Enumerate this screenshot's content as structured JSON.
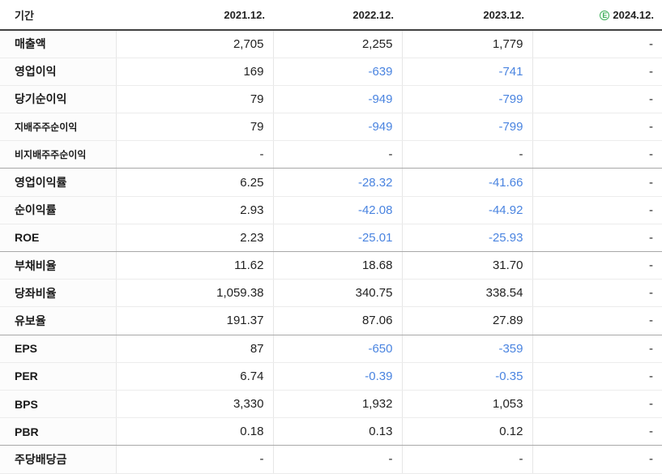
{
  "table": {
    "header": {
      "period_label": "기간",
      "years": [
        "2021.12.",
        "2022.12.",
        "2023.12.",
        "2024.12."
      ],
      "estimate_icon_letter": "E",
      "estimate_year_index": 3
    },
    "rows": [
      {
        "label": "매출액",
        "values": [
          "2,705",
          "2,255",
          "1,779",
          "-"
        ]
      },
      {
        "label": "영업이익",
        "values": [
          "169",
          "-639",
          "-741",
          "-"
        ]
      },
      {
        "label": "당기순이익",
        "values": [
          "79",
          "-949",
          "-799",
          "-"
        ]
      },
      {
        "label": "지배주주순이익",
        "values": [
          "79",
          "-949",
          "-799",
          "-"
        ],
        "small_label": true
      },
      {
        "label": "비지배주주순이익",
        "values": [
          "-",
          "-",
          "-",
          "-"
        ],
        "small_label": true,
        "group_end": true
      },
      {
        "label": "영업이익률",
        "values": [
          "6.25",
          "-28.32",
          "-41.66",
          "-"
        ]
      },
      {
        "label": "순이익률",
        "values": [
          "2.93",
          "-42.08",
          "-44.92",
          "-"
        ]
      },
      {
        "label": "ROE",
        "values": [
          "2.23",
          "-25.01",
          "-25.93",
          "-"
        ],
        "group_end": true
      },
      {
        "label": "부채비율",
        "values": [
          "11.62",
          "18.68",
          "31.70",
          "-"
        ]
      },
      {
        "label": "당좌비율",
        "values": [
          "1,059.38",
          "340.75",
          "338.54",
          "-"
        ]
      },
      {
        "label": "유보율",
        "values": [
          "191.37",
          "87.06",
          "27.89",
          "-"
        ],
        "group_end": true
      },
      {
        "label": "EPS",
        "values": [
          "87",
          "-650",
          "-359",
          "-"
        ]
      },
      {
        "label": "PER",
        "values": [
          "6.74",
          "-0.39",
          "-0.35",
          "-"
        ]
      },
      {
        "label": "BPS",
        "values": [
          "3,330",
          "1,932",
          "1,053",
          "-"
        ]
      },
      {
        "label": "PBR",
        "values": [
          "0.18",
          "0.13",
          "0.12",
          "-"
        ],
        "group_end": true
      },
      {
        "label": "주당배당금",
        "values": [
          "-",
          "-",
          "-",
          "-"
        ]
      }
    ]
  },
  "colors": {
    "negative_value": "#4a84e0",
    "estimate_green": "#3fae5a",
    "header_border": "#404040",
    "group_border": "#a8a8a8",
    "row_border": "#ececec"
  }
}
